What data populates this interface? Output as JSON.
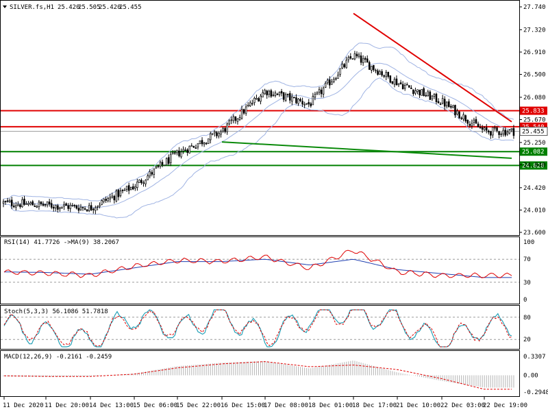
{
  "colors": {
    "bull_body": "#ffffff",
    "bear_body": "#000000",
    "candle_outline": "#000000",
    "bollinger": "#9fb3e3",
    "resistance": "#e00000",
    "support": "#008000",
    "trendline_down": "#e00000",
    "trendline_up": "#0a8a0a",
    "rsi_line": "#e00000",
    "rsi_ma": "#1f3fb0",
    "stoch_main": "#26a2b8",
    "stoch_signal": "#e00000",
    "macd_hist": "#b5b5b5",
    "macd_signal": "#e00000",
    "price_badge": "#e00000",
    "current_price_badge": "#e00000"
  },
  "chart_data": [
    {
      "type": "candlestick",
      "title": "SILVER.fs,H1",
      "ohlc_header": [
        "25.420",
        "25.505",
        "25.420",
        "25.455"
      ],
      "y_ticks": [
        "27.740",
        "27.320",
        "26.910",
        "26.500",
        "26.080",
        "25.670",
        "25.250",
        "24.840",
        "24.420",
        "24.010",
        "23.600"
      ],
      "ylim": [
        23.6,
        27.74
      ],
      "x_labels": [
        "11 Dec 2020",
        "11 Dec 20:00",
        "14 Dec 13:00",
        "15 Dec 06:00",
        "15 Dec 22:00",
        "16 Dec 15:00",
        "17 Dec 08:00",
        "18 Dec 01:00",
        "18 Dec 17:00",
        "21 Dec 10:00",
        "22 Dec 03:00",
        "22 Dec 19:00"
      ],
      "close_path": [
        {
          "x": "11 Dec 2020",
          "y": 24.14
        },
        {
          "x": "11 Dec 20:00",
          "y": 24.1
        },
        {
          "x": "14 Dec 13:00",
          "y": 24.05
        },
        {
          "x": "15 Dec 06:00",
          "y": 24.45
        },
        {
          "x": "15 Dec 22:00",
          "y": 25.05
        },
        {
          "x": "16 Dec 15:00",
          "y": 25.45
        },
        {
          "x": "17 Dec 08:00",
          "y": 26.2
        },
        {
          "x": "18 Dec 01:00",
          "y": 25.95
        },
        {
          "x": "18 Dec 17:00",
          "y": 26.85
        },
        {
          "x": "21 Dec 10:00",
          "y": 26.35
        },
        {
          "x": "22 Dec 03:00",
          "y": 26.0
        },
        {
          "x": "22 Dec 19:00",
          "y": 25.455
        }
      ],
      "candle_count": 245,
      "bollinger_bands": true,
      "horizontal_levels": [
        {
          "value": 25.833,
          "label": "25.833",
          "color": "#e00000"
        },
        {
          "value": 25.54,
          "label": "25.540",
          "color": "#e00000"
        },
        {
          "value": 25.082,
          "label": "25.082",
          "color": "#008000"
        },
        {
          "value": 24.828,
          "label": "24.828",
          "color": "#008000"
        }
      ],
      "current_price": {
        "value": 25.455,
        "label": "25.455"
      },
      "trendlines": [
        {
          "color": "#e00000",
          "from": {
            "x": "18 Dec 17:00",
            "y": 27.62
          },
          "to": {
            "x": "22 Dec 19:00",
            "y": 25.63
          }
        },
        {
          "color": "#0a8a0a",
          "from": {
            "x": "16 Dec 15:00",
            "y": 25.26
          },
          "to": {
            "x": "22 Dec 19:00",
            "y": 24.96
          }
        }
      ]
    },
    {
      "type": "line",
      "label": "RSI(14) 41.7726 ->MA(9) 38.2067",
      "y_ticks": [
        "100",
        "70",
        "30",
        "0"
      ],
      "ylim": [
        0,
        100
      ],
      "levels": [
        70,
        30
      ],
      "series": [
        {
          "values": [
            {
              "x": "11 Dec 2020",
              "y": 48
            },
            {
              "x": "11 Dec 20:00",
              "y": 46
            },
            {
              "x": "14 Dec 13:00",
              "y": 42
            },
            {
              "x": "15 Dec 06:00",
              "y": 58
            },
            {
              "x": "15 Dec 22:00",
              "y": 68
            },
            {
              "x": "16 Dec 15:00",
              "y": 66
            },
            {
              "x": "17 Dec 08:00",
              "y": 74
            },
            {
              "x": "18 Dec 01:00",
              "y": 54
            },
            {
              "x": "18 Dec 17:00",
              "y": 86
            },
            {
              "x": "21 Dec 10:00",
              "y": 48
            },
            {
              "x": "22 Dec 03:00",
              "y": 42
            },
            {
              "x": "22 Dec 19:00",
              "y": 41.77
            }
          ]
        },
        {
          "values": [
            {
              "x": "11 Dec 2020",
              "y": 48
            },
            {
              "x": "11 Dec 20:00",
              "y": 47
            },
            {
              "x": "14 Dec 13:00",
              "y": 44
            },
            {
              "x": "15 Dec 06:00",
              "y": 55
            },
            {
              "x": "15 Dec 22:00",
              "y": 66
            },
            {
              "x": "16 Dec 15:00",
              "y": 66
            },
            {
              "x": "17 Dec 08:00",
              "y": 70
            },
            {
              "x": "18 Dec 01:00",
              "y": 60
            },
            {
              "x": "18 Dec 17:00",
              "y": 70
            },
            {
              "x": "21 Dec 10:00",
              "y": 52
            },
            {
              "x": "22 Dec 03:00",
              "y": 45
            },
            {
              "x": "22 Dec 19:00",
              "y": 38.21
            }
          ]
        }
      ]
    },
    {
      "type": "line",
      "label": "Stoch(5,3,3) 56.1086 51.7818",
      "y_ticks": [
        "80",
        "20"
      ],
      "ylim": [
        0,
        100
      ],
      "levels": [
        80,
        20
      ],
      "series": [
        {
          "values": [
            {
              "x": "11 Dec 2020",
              "y": 60
            },
            {
              "x": "11 Dec 20:00",
              "y": 35
            },
            {
              "x": "14 Dec 13:00",
              "y": 15
            },
            {
              "x": "15 Dec 06:00",
              "y": 85
            },
            {
              "x": "15 Dec 22:00",
              "y": 45
            },
            {
              "x": "16 Dec 15:00",
              "y": 90
            },
            {
              "x": "17 Dec 08:00",
              "y": 25
            },
            {
              "x": "18 Dec 01:00",
              "y": 80
            },
            {
              "x": "18 Dec 17:00",
              "y": 95
            },
            {
              "x": "21 Dec 10:00",
              "y": 70
            },
            {
              "x": "22 Dec 03:00",
              "y": 10
            },
            {
              "x": "22 Dec 19:00",
              "y": 56.11
            }
          ]
        },
        {
          "values": [
            {
              "x": "11 Dec 2020",
              "y": 62
            },
            {
              "x": "11 Dec 20:00",
              "y": 38
            },
            {
              "x": "14 Dec 13:00",
              "y": 20
            },
            {
              "x": "15 Dec 06:00",
              "y": 80
            },
            {
              "x": "15 Dec 22:00",
              "y": 50
            },
            {
              "x": "16 Dec 15:00",
              "y": 85
            },
            {
              "x": "17 Dec 08:00",
              "y": 30
            },
            {
              "x": "18 Dec 01:00",
              "y": 75
            },
            {
              "x": "18 Dec 17:00",
              "y": 90
            },
            {
              "x": "21 Dec 10:00",
              "y": 72
            },
            {
              "x": "22 Dec 03:00",
              "y": 15
            },
            {
              "x": "22 Dec 19:00",
              "y": 51.78
            }
          ]
        }
      ]
    },
    {
      "type": "bar",
      "label": "MACD(12,26,9) -0.2161 -0.2459",
      "y_ticks": [
        "0.3307",
        "0.00",
        "-0.2948"
      ],
      "ylim": [
        -0.2948,
        0.3307
      ],
      "histogram": [
        {
          "x": "11 Dec 2020",
          "y": -0.02
        },
        {
          "x": "11 Dec 20:00",
          "y": -0.03
        },
        {
          "x": "14 Dec 13:00",
          "y": -0.02
        },
        {
          "x": "15 Dec 06:00",
          "y": 0.03
        },
        {
          "x": "15 Dec 22:00",
          "y": 0.16
        },
        {
          "x": "16 Dec 15:00",
          "y": 0.22
        },
        {
          "x": "17 Dec 08:00",
          "y": 0.25
        },
        {
          "x": "18 Dec 01:00",
          "y": 0.12
        },
        {
          "x": "18 Dec 17:00",
          "y": 0.26
        },
        {
          "x": "21 Dec 10:00",
          "y": 0.05
        },
        {
          "x": "22 Dec 03:00",
          "y": -0.1
        },
        {
          "x": "22 Dec 19:00",
          "y": -0.2161
        }
      ],
      "signal": [
        {
          "x": "11 Dec 2020",
          "y": -0.01
        },
        {
          "x": "11 Dec 20:00",
          "y": -0.02
        },
        {
          "x": "14 Dec 13:00",
          "y": -0.02
        },
        {
          "x": "15 Dec 06:00",
          "y": 0.02
        },
        {
          "x": "15 Dec 22:00",
          "y": 0.13
        },
        {
          "x": "16 Dec 15:00",
          "y": 0.2
        },
        {
          "x": "17 Dec 08:00",
          "y": 0.24
        },
        {
          "x": "18 Dec 01:00",
          "y": 0.15
        },
        {
          "x": "18 Dec 17:00",
          "y": 0.18
        },
        {
          "x": "21 Dec 10:00",
          "y": 0.1
        },
        {
          "x": "22 Dec 03:00",
          "y": -0.06
        },
        {
          "x": "22 Dec 19:00",
          "y": -0.2459
        }
      ]
    }
  ]
}
